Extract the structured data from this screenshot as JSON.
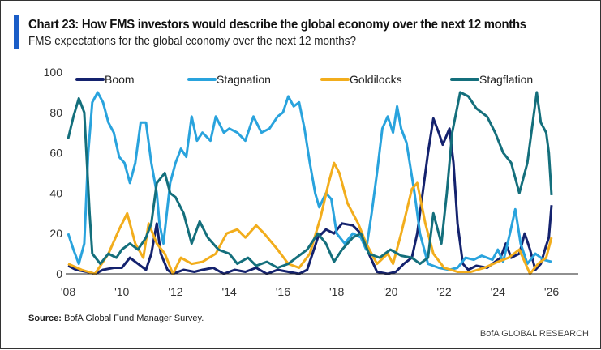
{
  "header": {
    "title": "Chart 23: How FMS investors would describe the global economy over the next 12 months",
    "subtitle": "FMS expectations for the global economy over the next 12 months?"
  },
  "footer": {
    "source_label": "Source:",
    "source_text": " BofA Global Fund Manager Survey.",
    "brand": "BofA GLOBAL RESEARCH"
  },
  "chart_data": {
    "type": "line",
    "title": "Chart 23: How FMS investors would describe the global economy over the next 12 months",
    "xlabel": "",
    "ylabel": "",
    "xlim": [
      2008,
      2027.2
    ],
    "ylim": [
      0,
      100
    ],
    "x_ticks": [
      {
        "v": 2008,
        "label": "'08"
      },
      {
        "v": 2010,
        "label": "'10"
      },
      {
        "v": 2012,
        "label": "'12"
      },
      {
        "v": 2014,
        "label": "'14"
      },
      {
        "v": 2016,
        "label": "'16"
      },
      {
        "v": 2018,
        "label": "'18"
      },
      {
        "v": 2020,
        "label": "'20"
      },
      {
        "v": 2022,
        "label": "'22"
      },
      {
        "v": 2024,
        "label": "'24"
      },
      {
        "v": 2026,
        "label": "'26"
      }
    ],
    "y_ticks": [
      {
        "v": 0,
        "label": "0"
      },
      {
        "v": 20,
        "label": "20"
      },
      {
        "v": 40,
        "label": "40"
      },
      {
        "v": 60,
        "label": "60"
      },
      {
        "v": 80,
        "label": "80"
      },
      {
        "v": 100,
        "label": "100"
      }
    ],
    "grid": false,
    "legend_position": "top",
    "series": [
      {
        "name": "Boom",
        "color": "#14226e",
        "points": [
          [
            2008.0,
            4
          ],
          [
            2008.3,
            2
          ],
          [
            2008.7,
            1
          ],
          [
            2009.0,
            0
          ],
          [
            2009.3,
            2
          ],
          [
            2009.7,
            3
          ],
          [
            2010.0,
            3
          ],
          [
            2010.3,
            8
          ],
          [
            2010.6,
            5
          ],
          [
            2010.9,
            2
          ],
          [
            2011.1,
            10
          ],
          [
            2011.3,
            25
          ],
          [
            2011.45,
            10
          ],
          [
            2011.7,
            2
          ],
          [
            2011.9,
            0
          ],
          [
            2012.3,
            2
          ],
          [
            2012.7,
            1
          ],
          [
            2013.0,
            2
          ],
          [
            2013.4,
            3
          ],
          [
            2013.8,
            0
          ],
          [
            2014.2,
            2
          ],
          [
            2014.6,
            1
          ],
          [
            2015.0,
            3
          ],
          [
            2015.4,
            0
          ],
          [
            2015.8,
            2
          ],
          [
            2016.2,
            1
          ],
          [
            2016.6,
            0
          ],
          [
            2016.9,
            2
          ],
          [
            2017.1,
            10
          ],
          [
            2017.3,
            18
          ],
          [
            2017.6,
            22
          ],
          [
            2017.9,
            20
          ],
          [
            2018.2,
            25
          ],
          [
            2018.6,
            24
          ],
          [
            2018.9,
            20
          ],
          [
            2019.2,
            10
          ],
          [
            2019.5,
            1
          ],
          [
            2019.9,
            0
          ],
          [
            2020.2,
            1
          ],
          [
            2020.5,
            5
          ],
          [
            2020.8,
            8
          ],
          [
            2021.0,
            20
          ],
          [
            2021.2,
            40
          ],
          [
            2021.4,
            60
          ],
          [
            2021.6,
            77
          ],
          [
            2021.8,
            70
          ],
          [
            2021.95,
            64
          ],
          [
            2022.2,
            72
          ],
          [
            2022.35,
            55
          ],
          [
            2022.5,
            25
          ],
          [
            2022.7,
            5
          ],
          [
            2022.9,
            2
          ],
          [
            2023.2,
            4
          ],
          [
            2023.6,
            3
          ],
          [
            2023.9,
            6
          ],
          [
            2024.1,
            8
          ],
          [
            2024.3,
            15
          ],
          [
            2024.5,
            8
          ],
          [
            2024.8,
            10
          ],
          [
            2025.0,
            20
          ],
          [
            2025.2,
            12
          ],
          [
            2025.4,
            2
          ],
          [
            2025.6,
            5
          ],
          [
            2025.8,
            14
          ],
          [
            2025.9,
            18
          ],
          [
            2026.0,
            34
          ]
        ]
      },
      {
        "name": "Stagnation",
        "color": "#29a3dd",
        "points": [
          [
            2008.0,
            20
          ],
          [
            2008.2,
            12
          ],
          [
            2008.4,
            5
          ],
          [
            2008.6,
            15
          ],
          [
            2008.75,
            60
          ],
          [
            2008.9,
            85
          ],
          [
            2009.1,
            90
          ],
          [
            2009.3,
            85
          ],
          [
            2009.5,
            75
          ],
          [
            2009.7,
            70
          ],
          [
            2009.9,
            58
          ],
          [
            2010.1,
            55
          ],
          [
            2010.3,
            45
          ],
          [
            2010.5,
            55
          ],
          [
            2010.7,
            75
          ],
          [
            2010.9,
            75
          ],
          [
            2011.1,
            55
          ],
          [
            2011.3,
            40
          ],
          [
            2011.4,
            25
          ],
          [
            2011.55,
            15
          ],
          [
            2011.8,
            45
          ],
          [
            2012.0,
            55
          ],
          [
            2012.2,
            62
          ],
          [
            2012.4,
            58
          ],
          [
            2012.6,
            78
          ],
          [
            2012.8,
            66
          ],
          [
            2013.0,
            70
          ],
          [
            2013.3,
            66
          ],
          [
            2013.5,
            78
          ],
          [
            2013.8,
            70
          ],
          [
            2014.0,
            72
          ],
          [
            2014.3,
            70
          ],
          [
            2014.6,
            66
          ],
          [
            2014.9,
            78
          ],
          [
            2015.2,
            70
          ],
          [
            2015.5,
            72
          ],
          [
            2015.8,
            78
          ],
          [
            2016.0,
            80
          ],
          [
            2016.2,
            88
          ],
          [
            2016.4,
            83
          ],
          [
            2016.6,
            85
          ],
          [
            2016.8,
            72
          ],
          [
            2017.0,
            55
          ],
          [
            2017.2,
            40
          ],
          [
            2017.35,
            33
          ],
          [
            2017.6,
            40
          ],
          [
            2017.8,
            37
          ],
          [
            2018.0,
            20
          ],
          [
            2018.3,
            15
          ],
          [
            2018.6,
            20
          ],
          [
            2018.9,
            18
          ],
          [
            2019.1,
            12
          ],
          [
            2019.3,
            30
          ],
          [
            2019.5,
            50
          ],
          [
            2019.7,
            72
          ],
          [
            2019.9,
            78
          ],
          [
            2020.1,
            70
          ],
          [
            2020.25,
            83
          ],
          [
            2020.4,
            72
          ],
          [
            2020.6,
            65
          ],
          [
            2020.9,
            40
          ],
          [
            2021.1,
            20
          ],
          [
            2021.4,
            5
          ],
          [
            2021.8,
            3
          ],
          [
            2022.2,
            2
          ],
          [
            2022.5,
            3
          ],
          [
            2022.8,
            8
          ],
          [
            2023.1,
            7
          ],
          [
            2023.4,
            9
          ],
          [
            2023.8,
            7
          ],
          [
            2024.0,
            12
          ],
          [
            2024.2,
            6
          ],
          [
            2024.45,
            20
          ],
          [
            2024.65,
            32
          ],
          [
            2024.85,
            15
          ],
          [
            2025.1,
            5
          ],
          [
            2025.4,
            10
          ],
          [
            2025.7,
            7
          ],
          [
            2026.0,
            6
          ]
        ]
      },
      {
        "name": "Goldilocks",
        "color": "#f2ad1c",
        "points": [
          [
            2008.0,
            5
          ],
          [
            2008.5,
            2
          ],
          [
            2009.0,
            0
          ],
          [
            2009.5,
            10
          ],
          [
            2009.9,
            22
          ],
          [
            2010.2,
            30
          ],
          [
            2010.5,
            15
          ],
          [
            2010.8,
            8
          ],
          [
            2011.0,
            25
          ],
          [
            2011.3,
            15
          ],
          [
            2011.6,
            10
          ],
          [
            2011.9,
            0
          ],
          [
            2012.2,
            8
          ],
          [
            2012.6,
            5
          ],
          [
            2013.0,
            6
          ],
          [
            2013.5,
            10
          ],
          [
            2013.9,
            20
          ],
          [
            2014.3,
            22
          ],
          [
            2014.6,
            18
          ],
          [
            2015.0,
            24
          ],
          [
            2015.3,
            20
          ],
          [
            2015.8,
            12
          ],
          [
            2016.2,
            5
          ],
          [
            2016.6,
            3
          ],
          [
            2017.0,
            10
          ],
          [
            2017.4,
            28
          ],
          [
            2017.7,
            45
          ],
          [
            2017.9,
            55
          ],
          [
            2018.1,
            50
          ],
          [
            2018.4,
            35
          ],
          [
            2018.8,
            25
          ],
          [
            2019.1,
            15
          ],
          [
            2019.5,
            5
          ],
          [
            2019.9,
            10
          ],
          [
            2020.1,
            5
          ],
          [
            2020.4,
            20
          ],
          [
            2020.8,
            42
          ],
          [
            2021.0,
            45
          ],
          [
            2021.3,
            25
          ],
          [
            2021.6,
            10
          ],
          [
            2022.0,
            3
          ],
          [
            2022.5,
            1
          ],
          [
            2023.0,
            1
          ],
          [
            2023.5,
            3
          ],
          [
            2024.0,
            6
          ],
          [
            2024.4,
            8
          ],
          [
            2024.8,
            12
          ],
          [
            2025.2,
            0
          ],
          [
            2025.5,
            5
          ],
          [
            2025.8,
            8
          ],
          [
            2026.0,
            18
          ]
        ]
      },
      {
        "name": "Stagflation",
        "color": "#146f7c",
        "points": [
          [
            2008.0,
            67
          ],
          [
            2008.2,
            78
          ],
          [
            2008.4,
            87
          ],
          [
            2008.6,
            80
          ],
          [
            2008.8,
            30
          ],
          [
            2008.9,
            10
          ],
          [
            2009.2,
            5
          ],
          [
            2009.5,
            10
          ],
          [
            2009.8,
            8
          ],
          [
            2010.0,
            12
          ],
          [
            2010.3,
            15
          ],
          [
            2010.6,
            12
          ],
          [
            2010.9,
            18
          ],
          [
            2011.1,
            25
          ],
          [
            2011.3,
            45
          ],
          [
            2011.6,
            50
          ],
          [
            2011.8,
            40
          ],
          [
            2012.0,
            38
          ],
          [
            2012.3,
            30
          ],
          [
            2012.6,
            15
          ],
          [
            2012.9,
            26
          ],
          [
            2013.2,
            18
          ],
          [
            2013.6,
            12
          ],
          [
            2014.0,
            10
          ],
          [
            2014.3,
            5
          ],
          [
            2014.7,
            8
          ],
          [
            2015.0,
            4
          ],
          [
            2015.4,
            6
          ],
          [
            2015.8,
            3
          ],
          [
            2016.2,
            5
          ],
          [
            2016.5,
            8
          ],
          [
            2016.9,
            12
          ],
          [
            2017.3,
            20
          ],
          [
            2017.6,
            15
          ],
          [
            2017.9,
            6
          ],
          [
            2018.2,
            12
          ],
          [
            2018.6,
            18
          ],
          [
            2018.9,
            20
          ],
          [
            2019.2,
            10
          ],
          [
            2019.6,
            8
          ],
          [
            2020.0,
            12
          ],
          [
            2020.4,
            9
          ],
          [
            2020.8,
            8
          ],
          [
            2021.1,
            5
          ],
          [
            2021.4,
            8
          ],
          [
            2021.6,
            30
          ],
          [
            2021.9,
            15
          ],
          [
            2022.1,
            40
          ],
          [
            2022.3,
            70
          ],
          [
            2022.6,
            90
          ],
          [
            2022.9,
            88
          ],
          [
            2023.2,
            82
          ],
          [
            2023.6,
            78
          ],
          [
            2023.9,
            70
          ],
          [
            2024.2,
            60
          ],
          [
            2024.5,
            55
          ],
          [
            2024.8,
            40
          ],
          [
            2025.1,
            55
          ],
          [
            2025.3,
            75
          ],
          [
            2025.45,
            90
          ],
          [
            2025.6,
            75
          ],
          [
            2025.8,
            70
          ],
          [
            2025.9,
            60
          ],
          [
            2026.0,
            39
          ]
        ]
      }
    ]
  }
}
